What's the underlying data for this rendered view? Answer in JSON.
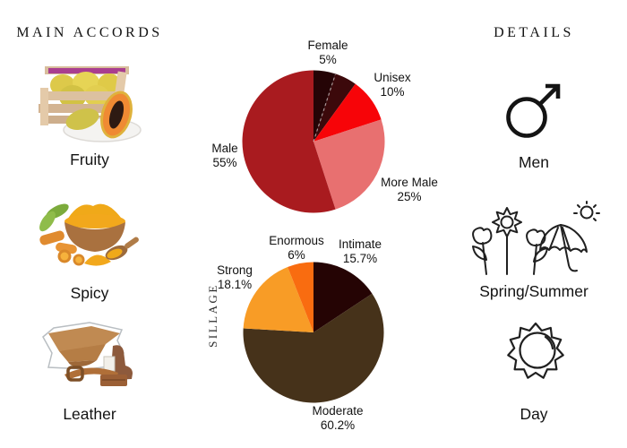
{
  "page": {
    "background": "#ffffff",
    "text_color": "#161616"
  },
  "left_panel": {
    "title": "MAIN ACCORDS",
    "accords": [
      {
        "label": "Fruity",
        "image": "fruit-crate-papaya-photo"
      },
      {
        "label": "Spicy",
        "image": "turmeric-bowl-photo"
      },
      {
        "label": "Leather",
        "image": "leather-goods-photo"
      }
    ]
  },
  "right_panel": {
    "title": "DETAILS",
    "items": [
      {
        "label": "Men",
        "icon": "male-symbol-icon"
      },
      {
        "label": "Spring/Summer",
        "icon": "flowers-umbrella-sun-icon"
      },
      {
        "label": "Day",
        "icon": "sun-icon"
      }
    ]
  },
  "chart_data": [
    {
      "type": "pie",
      "name": "gender-votes-pie",
      "start_angle": 0,
      "direction": "clockwise",
      "legend_position": "outside-labels",
      "slices": [
        {
          "label": "Female",
          "pct_text": "5%",
          "value": 5,
          "color": "#250406"
        },
        {
          "label": "",
          "pct_text": "",
          "value": 5,
          "color": "#3c090b"
        },
        {
          "label": "Unisex",
          "pct_text": "10%",
          "value": 10,
          "color": "#f70408"
        },
        {
          "label": "More Male",
          "pct_text": "25%",
          "value": 25,
          "color": "#e87070"
        },
        {
          "label": "Male",
          "pct_text": "55%",
          "value": 55,
          "color": "#a91b1f"
        }
      ],
      "dashed_divider_after_slice": 0
    },
    {
      "type": "pie",
      "name": "sillage-pie",
      "axis_label": "SILLAGE",
      "start_angle": 0,
      "direction": "clockwise",
      "legend_position": "outside-labels",
      "slices": [
        {
          "label": "Intimate",
          "pct_text": "15.7%",
          "value": 15.7,
          "color": "#250404"
        },
        {
          "label": "Moderate",
          "pct_text": "60.2%",
          "value": 60.2,
          "color": "#46321a"
        },
        {
          "label": "Strong",
          "pct_text": "18.1%",
          "value": 18.1,
          "color": "#f89c26"
        },
        {
          "label": "Enormous",
          "pct_text": "6%",
          "value": 6,
          "color": "#f96c10"
        }
      ]
    }
  ]
}
